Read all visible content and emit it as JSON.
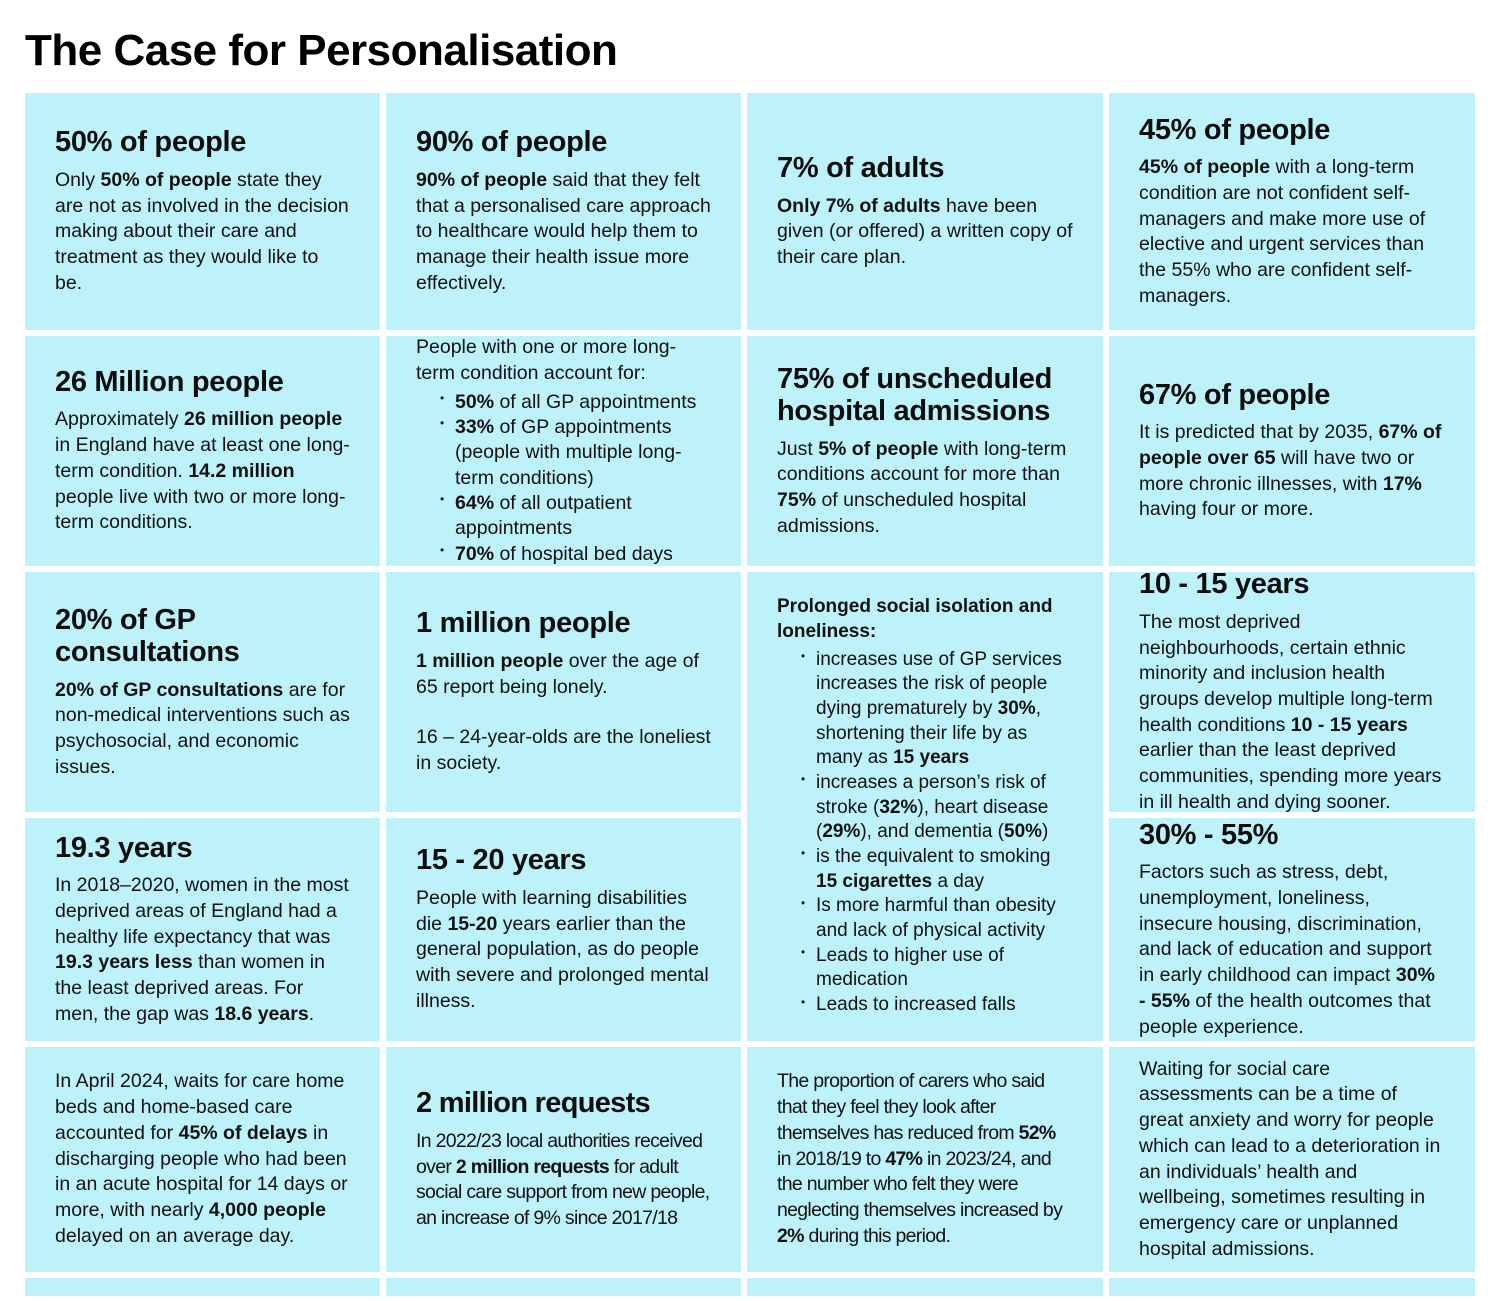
{
  "page_title": "The Case for Personalisation",
  "colors": {
    "card_background": "#bdf2fa",
    "text": "#000000",
    "background": "#ffffff"
  },
  "cards": [
    {
      "heading": "50% of people",
      "paragraphs": [
        [
          {
            "t": "Only "
          },
          {
            "t": "50% of people",
            "b": true
          },
          {
            "t": " state they are not as involved in the decision making about their care and treatment as they would like to be."
          }
        ]
      ]
    },
    {
      "heading": "90% of people",
      "paragraphs": [
        [
          {
            "t": "90% of people",
            "b": true
          },
          {
            "t": " said that they felt that a personalised care approach to healthcare would help them to manage their health issue more effectively."
          }
        ]
      ]
    },
    {
      "heading": "7% of adults",
      "paragraphs": [
        [
          {
            "t": "Only 7% of adults",
            "b": true
          },
          {
            "t": " have been given (or offered) a written copy of their care plan."
          }
        ]
      ]
    },
    {
      "heading": "45% of people",
      "paragraphs": [
        [
          {
            "t": "45% of people",
            "b": true
          },
          {
            "t": " with a long-term condition are not confident self-managers and make more use of elective and urgent services than the 55% who are confident self-managers."
          }
        ]
      ]
    },
    {
      "heading": "26 Million people",
      "paragraphs": [
        [
          {
            "t": "Approximately "
          },
          {
            "t": "26 million people",
            "b": true
          },
          {
            "t": " in England have at least one long-term condition. "
          },
          {
            "t": "14.2 million",
            "b": true
          },
          {
            "t": " people live with two or more long-term conditions."
          }
        ]
      ]
    },
    {
      "intro": [
        {
          "t": "People with one or more long-term condition account for:"
        }
      ],
      "bullets": [
        [
          {
            "t": "50%",
            "b": true
          },
          {
            "t": " of all GP appointments"
          }
        ],
        [
          {
            "t": "33%",
            "b": true
          },
          {
            "t": " of GP appointments (people with multiple long-term conditions)"
          }
        ],
        [
          {
            "t": "64%",
            "b": true
          },
          {
            "t": " of all outpatient appointments"
          }
        ],
        [
          {
            "t": "70%",
            "b": true
          },
          {
            "t": " of hospital bed days"
          }
        ]
      ]
    },
    {
      "heading": "75% of unscheduled hospital admissions",
      "paragraphs": [
        [
          {
            "t": "Just "
          },
          {
            "t": "5% of people",
            "b": true
          },
          {
            "t": " with long-term conditions account for more than "
          },
          {
            "t": "75%",
            "b": true
          },
          {
            "t": " of unscheduled hospital admissions."
          }
        ]
      ]
    },
    {
      "heading": "67% of people",
      "paragraphs": [
        [
          {
            "t": "It is predicted that by 2035, "
          },
          {
            "t": "67% of people over 65",
            "b": true
          },
          {
            "t": " will have two or more chronic illnesses, with "
          },
          {
            "t": "17%",
            "b": true
          },
          {
            "t": " having four or more."
          }
        ]
      ]
    },
    {
      "heading": "20% of GP consultations",
      "paragraphs": [
        [
          {
            "t": "20% of GP consultations",
            "b": true
          },
          {
            "t": " are for non-medical interventions such as psychosocial, and economic issues."
          }
        ]
      ]
    },
    {
      "heading": "1 million people",
      "paragraphs": [
        [
          {
            "t": "1 million people",
            "b": true
          },
          {
            "t": " over the age of 65 report being lonely."
          }
        ],
        [
          {
            "t": "16 – 24-year-olds are the loneliest in society."
          }
        ]
      ]
    },
    {
      "intro": [
        {
          "t": "Prolonged social isolation and loneliness:",
          "b": true
        }
      ],
      "bullets": [
        [
          {
            "t": "increases use of GP services increases the risk of people dying prematurely by "
          },
          {
            "t": "30%",
            "b": true
          },
          {
            "t": ", shortening their life by as many as "
          },
          {
            "t": "15 years",
            "b": true
          }
        ],
        [
          {
            "t": "increases a person’s risk of stroke ("
          },
          {
            "t": "32%",
            "b": true
          },
          {
            "t": "), heart disease ("
          },
          {
            "t": "29%",
            "b": true
          },
          {
            "t": "), and dementia ("
          },
          {
            "t": "50%",
            "b": true
          },
          {
            "t": ")"
          }
        ],
        [
          {
            "t": "is the equivalent to smoking "
          },
          {
            "t": "15 cigarettes",
            "b": true
          },
          {
            "t": " a day"
          }
        ],
        [
          {
            "t": "Is more harmful than obesity and lack of physical activity"
          }
        ],
        [
          {
            "t": "Leads to higher use of medication"
          }
        ],
        [
          {
            "t": "Leads to increased falls"
          }
        ]
      ]
    },
    {
      "heading": "10 - 15 years",
      "paragraphs": [
        [
          {
            "t": "The most deprived neighbourhoods, certain ethnic minority and inclusion health groups develop multiple long-term health conditions "
          },
          {
            "t": "10 - 15 years",
            "b": true
          },
          {
            "t": " earlier than the least deprived communities, spending more years in ill health and dying sooner."
          }
        ]
      ]
    },
    {
      "heading": "19.3 years",
      "paragraphs": [
        [
          {
            "t": "In 2018–2020, women in the most deprived areas of England had a healthy life expectancy that was "
          },
          {
            "t": "19.3 years less",
            "b": true
          },
          {
            "t": " than women in the least deprived areas. For men, the gap was "
          },
          {
            "t": "18.6 years",
            "b": true
          },
          {
            "t": "."
          }
        ]
      ]
    },
    {
      "heading": "15 - 20 years",
      "paragraphs": [
        [
          {
            "t": "People with learning disabilities die "
          },
          {
            "t": "15-20",
            "b": true
          },
          {
            "t": " years earlier than the general population, as do people with severe and prolonged mental illness."
          }
        ]
      ]
    },
    {
      "heading": "30% - 55%",
      "paragraphs": [
        [
          {
            "t": "Factors such as stress, debt, unemployment, loneliness, insecure housing, discrimination, and lack of education and support in early childhood can impact "
          },
          {
            "t": "30% - 55%",
            "b": true
          },
          {
            "t": " of the health outcomes that people experience."
          }
        ]
      ]
    },
    {
      "paragraphs": [
        [
          {
            "t": "In April 2024, waits for care home beds and home-based care accounted for "
          },
          {
            "t": "45% of delays",
            "b": true
          },
          {
            "t": " in discharging people who had been in an acute hospital for 14 days or more, with nearly "
          },
          {
            "t": "4,000 people",
            "b": true
          },
          {
            "t": " delayed on an average day."
          }
        ]
      ]
    },
    {
      "heading": "2 million requests",
      "paragraphs": [
        [
          {
            "t": "In 2022/23 local authorities received over "
          },
          {
            "t": "2 million requests",
            "b": true
          },
          {
            "t": " for adult social care support from new people, an increase of 9% since 2017/18"
          }
        ]
      ]
    },
    {
      "paragraphs": [
        [
          {
            "t": "The proportion of carers who said that they feel they look after themselves has reduced from "
          },
          {
            "t": "52%",
            "b": true
          },
          {
            "t": " in 2018/19 to "
          },
          {
            "t": "47%",
            "b": true
          },
          {
            "t": " in 2023/24, and the number who felt they were neglecting themselves increased by "
          },
          {
            "t": "2%",
            "b": true
          },
          {
            "t": " during this period."
          }
        ]
      ]
    },
    {
      "paragraphs": [
        [
          {
            "t": "Waiting for social care assessments can be a time of great anxiety and worry for people which can lead to a deterioration in an individuals’ health and wellbeing, sometimes resulting in emergency care or unplanned hospital admissions."
          }
        ]
      ]
    }
  ]
}
